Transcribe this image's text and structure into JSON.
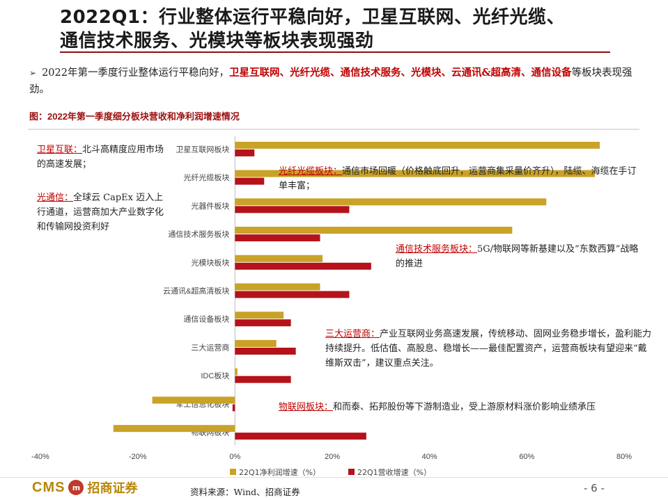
{
  "title": {
    "line1": "2022Q1：行业整体运行平稳向好，卫星互联网、光纤光缆、",
    "line2": "通信技术服务、光模块等板块表现强劲"
  },
  "bullet": {
    "prefix": "2022年第一季度行业整体运行平稳向好，",
    "highlight1": "卫星互联网、光纤光缆、通信技术服务、光模块、云通讯&超高清、通信设备",
    "suffix": "等板块表现强劲。"
  },
  "figure_caption": "图：2022年第一季度细分板块营收和净利润增速情况",
  "notes": [
    {
      "lead": "卫星互联：",
      "text": "北斗高精度应用市场的高速发展；"
    },
    {
      "lead": "光通信：",
      "text": "全球云 CapEx 迈入上行通道，运营商加大产业数字化和传输网投资利好"
    },
    {
      "lead": "光纤光缆板块：",
      "text": "通信市场回暖（价格触底回升，运营商集采量价齐升），陆缆、海缆在手订单丰富；"
    },
    {
      "lead": "通信技术服务板块：",
      "text": "5G/物联网等新基建以及“东数西算”战略的推进"
    },
    {
      "lead": "三大运营商：",
      "text": "产业互联网业务高速发展，传统移动、固网业务稳步增长，盈利能力持续提升。低估值、高股息、稳增长——最佳配置资产，运营商板块有望迎来“戴维斯双击”，建议重点关注。"
    },
    {
      "lead": "物联网板块：",
      "text": "和而泰、拓邦股份等下游制造业，受上游原材料涨价影响业绩承压"
    }
  ],
  "chart_data": {
    "type": "bar",
    "orientation": "horizontal",
    "categories": [
      "卫星互联网板块",
      "光纤光缆板块",
      "光器件板块",
      "通信技术服务板块",
      "光模块板块",
      "云通讯&超高清板块",
      "通信设备板块",
      "三大运营商",
      "IDC板块",
      "军工信息化板块",
      "物联网板块"
    ],
    "series": [
      {
        "name": "22Q1净利润增速（%）",
        "color": "#c9a227",
        "values": [
          75,
          74,
          64,
          57,
          18,
          17.5,
          10,
          8.5,
          0.5,
          -17,
          -25
        ]
      },
      {
        "name": "22Q1营收增速（%）",
        "color": "#b5121b",
        "values": [
          4,
          6,
          23.5,
          17.5,
          28,
          23.5,
          11.5,
          12.5,
          11.5,
          -0.5,
          27
        ]
      }
    ],
    "xlim": [
      -40,
      80
    ],
    "xticks": [
      "-40%",
      "-20%",
      "0%",
      "20%",
      "40%",
      "60%",
      "80%"
    ],
    "legend_position": "bottom"
  },
  "footer": {
    "logo_text": "CMS",
    "logo_mark": "m",
    "company": "招商证券",
    "source": "资料来源：Wind、招商证券",
    "page": "- 6 -"
  }
}
